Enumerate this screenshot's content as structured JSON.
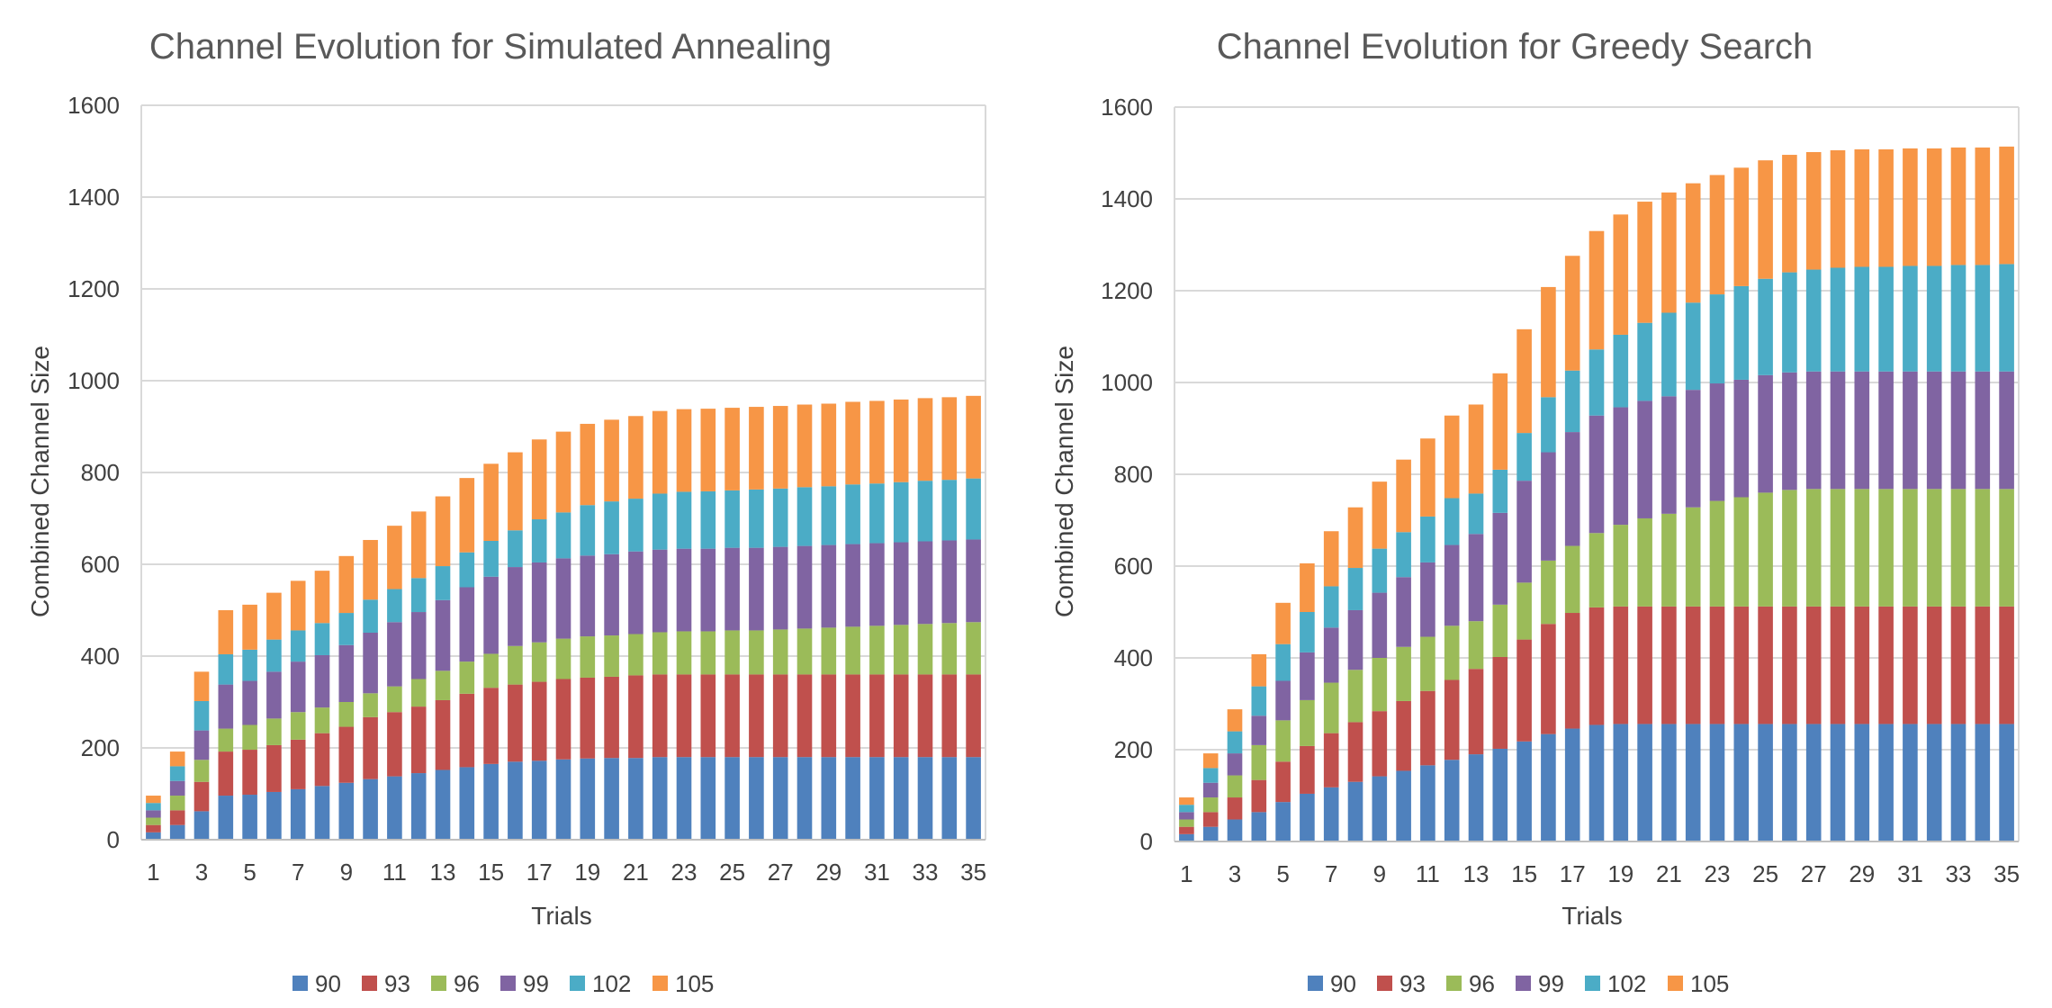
{
  "chart_data": [
    {
      "type": "bar",
      "stacked": true,
      "title": "Channel Evolution for Simulated Annealing",
      "xlabel": "Trials",
      "ylabel": "Combined Channel Size",
      "ylim": [
        0,
        1600
      ],
      "yticks": [
        "0",
        "200",
        "400",
        "600",
        "800",
        "1000",
        "1200",
        "1400",
        "1600"
      ],
      "grid": true,
      "legend_position": "bottom",
      "categories": [
        "1",
        "2",
        "3",
        "4",
        "5",
        "6",
        "7",
        "8",
        "9",
        "10",
        "11",
        "12",
        "13",
        "14",
        "15",
        "16",
        "17",
        "18",
        "19",
        "20",
        "21",
        "22",
        "23",
        "24",
        "25",
        "26",
        "27",
        "28",
        "29",
        "30",
        "31",
        "32",
        "33",
        "34",
        "35"
      ],
      "x_tick_labels": [
        "1",
        "3",
        "5",
        "7",
        "9",
        "11",
        "13",
        "15",
        "17",
        "19",
        "21",
        "23",
        "25",
        "27",
        "29",
        "31",
        "33",
        "35"
      ],
      "series": [
        {
          "name": "90",
          "color": "#4f81bd",
          "values": [
            16,
            32,
            62,
            96,
            98,
            104,
            110,
            117,
            124,
            132,
            138,
            145,
            152,
            158,
            165,
            170,
            172,
            175,
            177,
            178,
            178,
            180,
            180,
            180,
            180,
            180,
            180,
            180,
            180,
            180,
            180,
            180,
            180,
            180,
            180
          ]
        },
        {
          "name": "93",
          "color": "#c0504d",
          "values": [
            16,
            32,
            64,
            96,
            98,
            102,
            108,
            115,
            122,
            135,
            140,
            145,
            152,
            160,
            166,
            168,
            172,
            175,
            176,
            177,
            180,
            180,
            180,
            180,
            180,
            180,
            180,
            180,
            180,
            180,
            180,
            180,
            180,
            180,
            180
          ]
        },
        {
          "name": "96",
          "color": "#9bbb59",
          "values": [
            16,
            32,
            48,
            50,
            54,
            58,
            60,
            56,
            54,
            52,
            56,
            60,
            64,
            70,
            74,
            84,
            86,
            88,
            90,
            90,
            90,
            92,
            94,
            94,
            96,
            96,
            98,
            100,
            102,
            104,
            106,
            108,
            110,
            112,
            114
          ]
        },
        {
          "name": "99",
          "color": "#8064a2",
          "values": [
            16,
            32,
            64,
            96,
            96,
            102,
            110,
            114,
            124,
            132,
            140,
            146,
            154,
            162,
            168,
            172,
            174,
            175,
            176,
            177,
            180,
            180,
            180,
            180,
            180,
            180,
            180,
            180,
            180,
            180,
            180,
            180,
            180,
            180,
            180
          ]
        },
        {
          "name": "102",
          "color": "#4bacc6",
          "values": [
            16,
            32,
            64,
            66,
            68,
            70,
            68,
            70,
            70,
            72,
            72,
            74,
            74,
            76,
            78,
            80,
            94,
            100,
            110,
            115,
            115,
            122,
            124,
            125,
            125,
            127,
            127,
            128,
            128,
            130,
            130,
            131,
            132,
            132,
            133
          ]
        },
        {
          "name": "105",
          "color": "#f79646",
          "values": [
            16,
            32,
            64,
            96,
            98,
            102,
            108,
            114,
            124,
            130,
            138,
            145,
            152,
            162,
            168,
            170,
            174,
            176,
            177,
            178,
            180,
            180,
            180,
            180,
            180,
            180,
            180,
            180,
            180,
            180,
            180,
            180,
            180,
            180,
            180
          ]
        }
      ]
    },
    {
      "type": "bar",
      "stacked": true,
      "title": "Channel Evolution for Greedy Search",
      "xlabel": "Trials",
      "ylabel": "Combined Channel Size",
      "ylim": [
        0,
        1600
      ],
      "yticks": [
        "0",
        "200",
        "400",
        "600",
        "800",
        "1000",
        "1200",
        "1400",
        "1600"
      ],
      "grid": true,
      "legend_position": "bottom",
      "categories": [
        "1",
        "2",
        "3",
        "4",
        "5",
        "6",
        "7",
        "8",
        "9",
        "10",
        "11",
        "12",
        "13",
        "14",
        "15",
        "16",
        "17",
        "18",
        "19",
        "20",
        "21",
        "22",
        "23",
        "24",
        "25",
        "26",
        "27",
        "28",
        "29",
        "30",
        "31",
        "32",
        "33",
        "34",
        "35"
      ],
      "x_tick_labels": [
        "1",
        "3",
        "5",
        "7",
        "9",
        "11",
        "13",
        "15",
        "17",
        "19",
        "21",
        "23",
        "25",
        "27",
        "29",
        "31",
        "33",
        "35"
      ],
      "series": [
        {
          "name": "90",
          "color": "#4f81bd",
          "values": [
            16,
            32,
            48,
            64,
            86,
            104,
            118,
            130,
            142,
            154,
            166,
            178,
            190,
            202,
            218,
            234,
            246,
            254,
            256,
            256,
            256,
            256,
            256,
            256,
            256,
            256,
            256,
            256,
            256,
            256,
            256,
            256,
            256,
            256,
            256
          ]
        },
        {
          "name": "93",
          "color": "#c0504d",
          "values": [
            16,
            32,
            48,
            70,
            88,
            104,
            118,
            130,
            142,
            152,
            162,
            174,
            186,
            200,
            222,
            240,
            252,
            256,
            256,
            256,
            256,
            256,
            256,
            256,
            256,
            256,
            256,
            256,
            256,
            256,
            256,
            256,
            256,
            256,
            256
          ]
        },
        {
          "name": "96",
          "color": "#9bbb59",
          "values": [
            16,
            32,
            48,
            76,
            90,
            100,
            110,
            114,
            116,
            118,
            118,
            118,
            104,
            114,
            124,
            138,
            146,
            162,
            178,
            192,
            202,
            216,
            230,
            238,
            248,
            254,
            256,
            256,
            256,
            256,
            256,
            256,
            256,
            256,
            256
          ]
        },
        {
          "name": "99",
          "color": "#8064a2",
          "values": [
            16,
            32,
            48,
            64,
            86,
            104,
            120,
            130,
            142,
            152,
            162,
            176,
            190,
            200,
            222,
            236,
            248,
            256,
            256,
            256,
            256,
            256,
            256,
            256,
            256,
            256,
            256,
            256,
            256,
            256,
            256,
            256,
            256,
            256,
            256
          ]
        },
        {
          "name": "102",
          "color": "#4bacc6",
          "values": [
            16,
            32,
            48,
            64,
            80,
            88,
            90,
            92,
            96,
            98,
            100,
            102,
            88,
            94,
            104,
            120,
            134,
            144,
            158,
            170,
            182,
            190,
            194,
            204,
            210,
            218,
            222,
            226,
            228,
            228,
            230,
            230,
            232,
            232,
            234
          ]
        },
        {
          "name": "105",
          "color": "#f79646",
          "values": [
            16,
            32,
            48,
            70,
            90,
            106,
            120,
            132,
            146,
            158,
            170,
            180,
            194,
            210,
            226,
            240,
            250,
            258,
            262,
            264,
            262,
            260,
            260,
            258,
            258,
            256,
            256,
            256,
            256,
            256,
            256,
            256,
            256,
            256,
            256
          ]
        }
      ]
    }
  ]
}
